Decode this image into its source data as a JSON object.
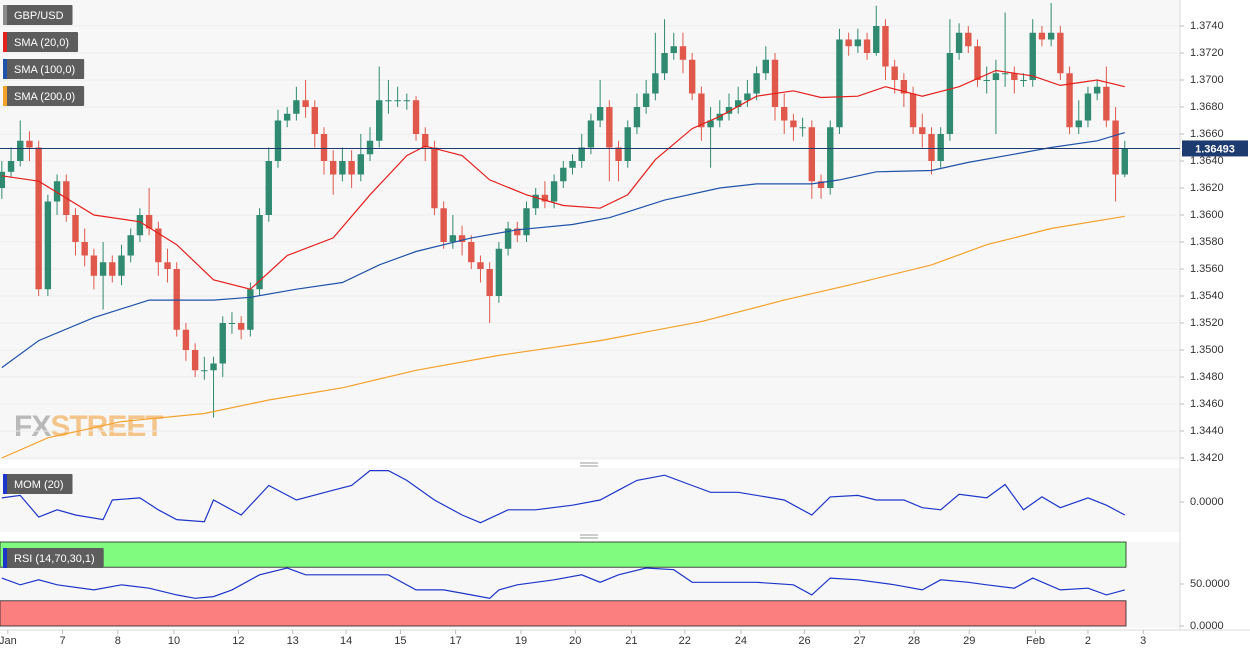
{
  "chart_data": [
    {
      "type": "candlestick",
      "title": "GBP/USD",
      "watermark": [
        "FX",
        "STREET"
      ],
      "up_color": "#2f8a70",
      "down_color": "#e0584b",
      "xlim": [
        -0.2,
        128
      ],
      "ylim": [
        1.342,
        1.376
      ],
      "yticks": [
        {
          "value": 1.342,
          "label": "1.3420"
        },
        {
          "value": 1.344,
          "label": "1.3440"
        },
        {
          "value": 1.346,
          "label": "1.3460"
        },
        {
          "value": 1.348,
          "label": "1.3480"
        },
        {
          "value": 1.35,
          "label": "1.3500"
        },
        {
          "value": 1.352,
          "label": "1.3520"
        },
        {
          "value": 1.354,
          "label": "1.3540"
        },
        {
          "value": 1.356,
          "label": "1.3560"
        },
        {
          "value": 1.358,
          "label": "1.3580"
        },
        {
          "value": 1.36,
          "label": "1.3600"
        },
        {
          "value": 1.362,
          "label": "1.3620"
        },
        {
          "value": 1.364,
          "label": "1.3640"
        },
        {
          "value": 1.366,
          "label": "1.3660"
        },
        {
          "value": 1.368,
          "label": "1.3680"
        },
        {
          "value": 1.37,
          "label": "1.3700"
        },
        {
          "value": 1.372,
          "label": "1.3720"
        },
        {
          "value": 1.374,
          "label": "1.3740"
        }
      ],
      "last_price": 1.36493,
      "last_price_color": "#1d3b6f",
      "open": [
        1.362,
        1.3632,
        1.364,
        1.3655,
        1.365,
        1.3545,
        1.361,
        1.3625,
        1.36,
        1.358,
        1.357,
        1.3555,
        1.3565,
        1.3555,
        1.357,
        1.3585,
        1.36,
        1.359,
        1.3565,
        1.356,
        1.3515,
        1.35,
        1.3485,
        1.3485,
        1.349,
        1.352,
        1.352,
        1.3515,
        1.3545,
        1.36,
        1.364,
        1.367,
        1.3675,
        1.3685,
        1.368,
        1.366,
        1.364,
        1.363,
        1.364,
        1.363,
        1.3645,
        1.3655,
        1.3685,
        1.3685,
        1.3685,
        1.3685,
        1.366,
        1.365,
        1.3605,
        1.358,
        1.3585,
        1.358,
        1.3565,
        1.356,
        1.354,
        1.3575,
        1.359,
        1.3585,
        1.3605,
        1.3615,
        1.361,
        1.3625,
        1.3635,
        1.364,
        1.365,
        1.367,
        1.368,
        1.365,
        1.364,
        1.3665,
        1.368,
        1.369,
        1.3705,
        1.372,
        1.3725,
        1.3715,
        1.369,
        1.3665,
        1.367,
        1.3675,
        1.368,
        1.3685,
        1.369,
        1.3705,
        1.3715,
        1.368,
        1.367,
        1.3665,
        1.3665,
        1.3625,
        1.362,
        1.3665,
        1.373,
        1.3725,
        1.373,
        1.372,
        1.374,
        1.371,
        1.37,
        1.369,
        1.3665,
        1.366,
        1.364,
        1.366,
        1.372,
        1.3735,
        1.3725,
        1.37,
        1.37,
        1.3705,
        1.3705,
        1.37,
        1.37,
        1.3735,
        1.373,
        1.3735,
        1.3705,
        1.3665,
        1.367,
        1.369,
        1.3695,
        1.367,
        1.363
      ],
      "high": [
        1.364,
        1.365,
        1.367,
        1.3662,
        1.3655,
        1.3615,
        1.363,
        1.363,
        1.3605,
        1.359,
        1.3575,
        1.358,
        1.357,
        1.3578,
        1.359,
        1.3605,
        1.362,
        1.3595,
        1.3575,
        1.3565,
        1.352,
        1.3505,
        1.3495,
        1.3495,
        1.3525,
        1.3528,
        1.3525,
        1.355,
        1.3605,
        1.365,
        1.3678,
        1.368,
        1.3695,
        1.37,
        1.3685,
        1.3665,
        1.3648,
        1.365,
        1.3648,
        1.366,
        1.3665,
        1.371,
        1.37,
        1.3695,
        1.369,
        1.3688,
        1.3665,
        1.3655,
        1.361,
        1.36,
        1.3592,
        1.3585,
        1.357,
        1.3565,
        1.358,
        1.3595,
        1.3595,
        1.361,
        1.362,
        1.3625,
        1.363,
        1.364,
        1.3645,
        1.366,
        1.3675,
        1.37,
        1.3685,
        1.3655,
        1.367,
        1.369,
        1.37,
        1.3735,
        1.3745,
        1.3735,
        1.3735,
        1.372,
        1.3695,
        1.368,
        1.3685,
        1.369,
        1.3695,
        1.37,
        1.371,
        1.3725,
        1.372,
        1.369,
        1.3675,
        1.3672,
        1.367,
        1.363,
        1.367,
        1.3738,
        1.3735,
        1.3738,
        1.3735,
        1.3755,
        1.3745,
        1.3715,
        1.3705,
        1.3695,
        1.3675,
        1.3665,
        1.3665,
        1.3745,
        1.3742,
        1.374,
        1.373,
        1.371,
        1.3715,
        1.375,
        1.371,
        1.3705,
        1.3745,
        1.374,
        1.3757,
        1.374,
        1.371,
        1.3685,
        1.3695,
        1.37,
        1.371,
        1.368,
        1.3655
      ],
      "low": [
        1.3612,
        1.3628,
        1.3636,
        1.364,
        1.354,
        1.354,
        1.36,
        1.3595,
        1.357,
        1.3562,
        1.3545,
        1.353,
        1.355,
        1.3548,
        1.3565,
        1.358,
        1.3585,
        1.3555,
        1.355,
        1.351,
        1.3492,
        1.348,
        1.3478,
        1.345,
        1.348,
        1.3512,
        1.3508,
        1.351,
        1.354,
        1.3595,
        1.3635,
        1.3665,
        1.367,
        1.3672,
        1.365,
        1.363,
        1.3615,
        1.3625,
        1.362,
        1.3625,
        1.364,
        1.365,
        1.3675,
        1.368,
        1.3678,
        1.3655,
        1.364,
        1.36,
        1.3575,
        1.3575,
        1.357,
        1.356,
        1.355,
        1.352,
        1.3535,
        1.357,
        1.358,
        1.358,
        1.36,
        1.3605,
        1.3605,
        1.362,
        1.363,
        1.3635,
        1.3645,
        1.3665,
        1.3625,
        1.3625,
        1.3635,
        1.366,
        1.3675,
        1.3685,
        1.37,
        1.3715,
        1.3705,
        1.3685,
        1.3655,
        1.3635,
        1.3665,
        1.367,
        1.3675,
        1.368,
        1.3685,
        1.37,
        1.367,
        1.366,
        1.3655,
        1.3658,
        1.3612,
        1.3612,
        1.3615,
        1.366,
        1.3718,
        1.372,
        1.3715,
        1.3718,
        1.37,
        1.369,
        1.368,
        1.366,
        1.365,
        1.363,
        1.3635,
        1.3655,
        1.3715,
        1.372,
        1.3695,
        1.369,
        1.366,
        1.3695,
        1.369,
        1.3695,
        1.3695,
        1.3725,
        1.3725,
        1.37,
        1.366,
        1.366,
        1.3665,
        1.3685,
        1.3665,
        1.361,
        1.3628
      ],
      "close": [
        1.3632,
        1.364,
        1.3655,
        1.365,
        1.3545,
        1.361,
        1.3625,
        1.36,
        1.358,
        1.357,
        1.3555,
        1.3565,
        1.3555,
        1.357,
        1.3585,
        1.36,
        1.359,
        1.3565,
        1.356,
        1.3515,
        1.35,
        1.3485,
        1.3485,
        1.349,
        1.352,
        1.352,
        1.3515,
        1.3545,
        1.36,
        1.364,
        1.367,
        1.3675,
        1.3685,
        1.368,
        1.366,
        1.364,
        1.363,
        1.364,
        1.363,
        1.3645,
        1.3655,
        1.3685,
        1.3685,
        1.3685,
        1.3685,
        1.366,
        1.365,
        1.3605,
        1.358,
        1.3585,
        1.358,
        1.3565,
        1.356,
        1.354,
        1.3575,
        1.359,
        1.3585,
        1.3605,
        1.3615,
        1.361,
        1.3625,
        1.3635,
        1.364,
        1.365,
        1.367,
        1.368,
        1.365,
        1.364,
        1.3665,
        1.368,
        1.369,
        1.3705,
        1.372,
        1.3725,
        1.3715,
        1.369,
        1.3665,
        1.367,
        1.3675,
        1.368,
        1.3685,
        1.369,
        1.3705,
        1.3715,
        1.368,
        1.367,
        1.3665,
        1.3665,
        1.3625,
        1.362,
        1.3665,
        1.373,
        1.3725,
        1.373,
        1.372,
        1.374,
        1.371,
        1.37,
        1.369,
        1.3665,
        1.366,
        1.364,
        1.366,
        1.372,
        1.3735,
        1.3725,
        1.37,
        1.37,
        1.3705,
        1.3705,
        1.37,
        1.37,
        1.3735,
        1.373,
        1.3735,
        1.3705,
        1.3665,
        1.367,
        1.369,
        1.3695,
        1.367,
        1.363,
        1.3649
      ],
      "series": [
        {
          "name": "SMA (20,0)",
          "color": "#e4201c",
          "x": [
            0,
            4,
            10,
            15,
            19,
            23,
            27,
            31,
            36,
            40,
            44,
            46,
            50,
            53,
            57,
            61,
            65,
            68,
            71,
            75,
            78,
            82,
            86,
            89,
            93,
            96,
            100,
            104,
            108,
            112,
            115,
            119,
            122
          ],
          "values": [
            1.3629,
            1.3625,
            1.36,
            1.3595,
            1.3578,
            1.3552,
            1.3545,
            1.357,
            1.3583,
            1.3615,
            1.3644,
            1.3651,
            1.3644,
            1.3626,
            1.3615,
            1.3607,
            1.3605,
            1.3615,
            1.3641,
            1.3664,
            1.3673,
            1.3688,
            1.3692,
            1.3687,
            1.3688,
            1.3695,
            1.3688,
            1.3695,
            1.3707,
            1.3703,
            1.3696,
            1.37,
            1.3695
          ]
        },
        {
          "name": "SMA (100,0)",
          "color": "#1f52a8",
          "x": [
            0,
            4,
            10,
            16,
            23,
            27,
            32,
            37,
            41,
            45,
            51,
            56,
            62,
            66,
            72,
            78,
            82,
            88,
            91,
            95,
            101,
            105,
            110,
            114,
            119,
            122
          ],
          "values": [
            1.3487,
            1.3507,
            1.3524,
            1.3537,
            1.3537,
            1.3539,
            1.3545,
            1.355,
            1.3563,
            1.3573,
            1.3583,
            1.3589,
            1.3593,
            1.3598,
            1.3611,
            1.362,
            1.3623,
            1.3623,
            1.3626,
            1.3632,
            1.3633,
            1.3639,
            1.3645,
            1.365,
            1.3655,
            1.3661
          ]
        },
        {
          "name": "SMA (200,0)",
          "color": "#f5a12a",
          "x": [
            0,
            5,
            13,
            22,
            29,
            37,
            45,
            54,
            65,
            76,
            85,
            92,
            101,
            107,
            114,
            122
          ],
          "values": [
            1.342,
            1.3435,
            1.3447,
            1.3453,
            1.3463,
            1.3472,
            1.3485,
            1.3496,
            1.3507,
            1.3521,
            1.3537,
            1.3548,
            1.3563,
            1.3578,
            1.359,
            1.3599
          ]
        }
      ]
    },
    {
      "type": "line",
      "xlim": [
        -0.2,
        128
      ],
      "ylim": [
        -0.0058,
        0.0066
      ],
      "yticks": [
        {
          "value": 0,
          "label": "0.0000"
        }
      ],
      "series": [
        {
          "name": "MOM (20)",
          "color": "#1d35c9",
          "x": [
            0,
            2,
            4,
            6,
            8,
            11,
            12,
            15,
            17,
            19,
            22,
            23,
            26,
            29,
            32,
            36,
            38,
            40,
            42,
            44,
            47,
            50,
            52,
            55,
            58,
            62,
            65,
            67,
            69,
            72,
            75,
            77,
            80,
            85,
            88,
            90,
            93,
            95,
            98,
            100,
            102,
            104,
            107,
            109,
            111,
            113,
            115,
            118,
            120,
            122
          ],
          "values": [
            0.0008,
            0.0013,
            -0.0029,
            -0.0015,
            -0.0025,
            -0.0034,
            0.0004,
            0.0008,
            -0.0015,
            -0.0034,
            -0.0038,
            0.0004,
            -0.0025,
            0.0032,
            0.0004,
            0.0023,
            0.0032,
            0.0061,
            0.0061,
            0.0042,
            0.0004,
            -0.0025,
            -0.004,
            -0.0015,
            -0.0015,
            -0.0006,
            0.0004,
            0.0023,
            0.0042,
            0.0052,
            0.0032,
            0.0019,
            0.0019,
            0.0004,
            -0.0025,
            0.001,
            0.0013,
            0.0004,
            0.0004,
            -0.0011,
            -0.0015,
            0.0015,
            0.0008,
            0.0034,
            -0.0015,
            0.001,
            -0.0011,
            0.0008,
            -0.0006,
            -0.0025
          ]
        }
      ]
    },
    {
      "type": "line",
      "xlim": [
        -0.2,
        128
      ],
      "ylim": [
        0,
        100
      ],
      "yticks": [
        {
          "value": 0,
          "label": "0.0000"
        },
        {
          "value": 50,
          "label": "50.0000"
        }
      ],
      "bands": [
        {
          "from": 70,
          "to": 100,
          "color": "#80fb80"
        },
        {
          "from": 0,
          "to": 30,
          "color": "#fb7f7f"
        }
      ],
      "xticks": [
        {
          "value": 0.65,
          "label": "Jan"
        },
        {
          "value": 6.6,
          "label": "7"
        },
        {
          "value": 12.6,
          "label": "8"
        },
        {
          "value": 18.7,
          "label": "10"
        },
        {
          "value": 25.7,
          "label": "12"
        },
        {
          "value": 31.6,
          "label": "13"
        },
        {
          "value": 37.4,
          "label": "14"
        },
        {
          "value": 43.3,
          "label": "15"
        },
        {
          "value": 49.3,
          "label": "17"
        },
        {
          "value": 56.4,
          "label": "19"
        },
        {
          "value": 62.3,
          "label": "20"
        },
        {
          "value": 68.4,
          "label": "21"
        },
        {
          "value": 74.2,
          "label": "22"
        },
        {
          "value": 80.3,
          "label": "24"
        },
        {
          "value": 87.2,
          "label": "26"
        },
        {
          "value": 93.2,
          "label": "27"
        },
        {
          "value": 99.1,
          "label": "28"
        },
        {
          "value": 105.1,
          "label": "29"
        },
        {
          "value": 112.3,
          "label": "Feb"
        },
        {
          "value": 118,
          "label": "2"
        },
        {
          "value": 124,
          "label": "3"
        }
      ],
      "series": [
        {
          "name": "RSI (14,70,30,1)",
          "color": "#1d35c9",
          "x": [
            0,
            2,
            4,
            6,
            10,
            13,
            16,
            19,
            21,
            23,
            25,
            28,
            31,
            33,
            37,
            40,
            42,
            45,
            48,
            51,
            53,
            54,
            56,
            60,
            63,
            65,
            67,
            70,
            73,
            75,
            78,
            82,
            86,
            88,
            90,
            93,
            97,
            100,
            102,
            105,
            107,
            110,
            112,
            115,
            118,
            120,
            122
          ],
          "values": [
            57,
            49,
            55,
            49,
            43,
            49,
            45,
            37,
            33,
            35,
            43,
            61,
            69,
            61,
            61,
            61,
            61,
            43,
            43,
            37,
            33,
            43,
            49,
            55,
            61,
            52,
            61,
            69,
            67,
            52,
            52,
            52,
            49,
            37,
            57,
            55,
            49,
            43,
            55,
            52,
            49,
            45,
            57,
            43,
            45,
            37,
            43
          ]
        }
      ]
    }
  ]
}
